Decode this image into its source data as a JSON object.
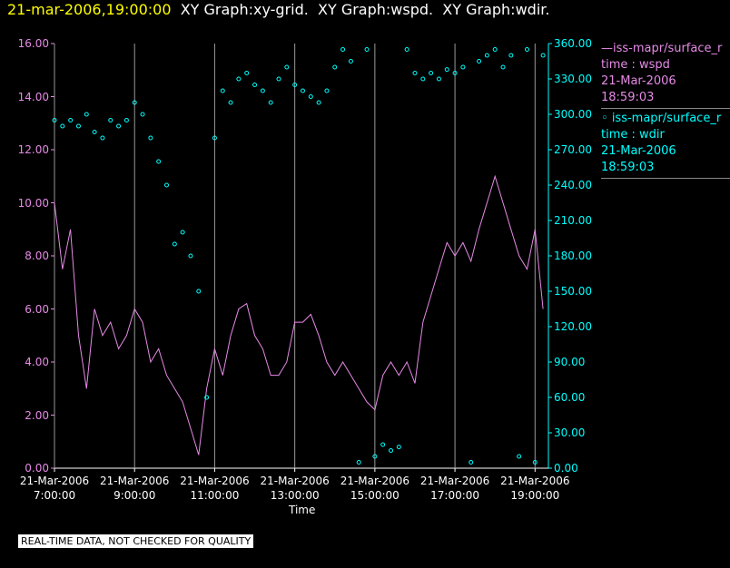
{
  "chart_data": {
    "type": "line",
    "timestamp": "21-mar-2006,19:00:00",
    "title": "XY Graph:xy-grid.  XY Graph:wspd.  XY Graph:wdir.",
    "xlabel": "Time",
    "footnote": "REAL-TIME DATA, NOT CHECKED FOR QUALITY",
    "grid": "x",
    "x": [
      "2006-03-21T07:00",
      "2006-03-21T07:12",
      "2006-03-21T07:24",
      "2006-03-21T07:36",
      "2006-03-21T07:48",
      "2006-03-21T08:00",
      "2006-03-21T08:12",
      "2006-03-21T08:24",
      "2006-03-21T08:36",
      "2006-03-21T08:48",
      "2006-03-21T09:00",
      "2006-03-21T09:12",
      "2006-03-21T09:24",
      "2006-03-21T09:36",
      "2006-03-21T09:48",
      "2006-03-21T10:00",
      "2006-03-21T10:12",
      "2006-03-21T10:24",
      "2006-03-21T10:36",
      "2006-03-21T10:48",
      "2006-03-21T11:00",
      "2006-03-21T11:12",
      "2006-03-21T11:24",
      "2006-03-21T11:36",
      "2006-03-21T11:48",
      "2006-03-21T12:00",
      "2006-03-21T12:12",
      "2006-03-21T12:24",
      "2006-03-21T12:36",
      "2006-03-21T12:48",
      "2006-03-21T13:00",
      "2006-03-21T13:12",
      "2006-03-21T13:24",
      "2006-03-21T13:36",
      "2006-03-21T13:48",
      "2006-03-21T14:00",
      "2006-03-21T14:12",
      "2006-03-21T14:24",
      "2006-03-21T14:36",
      "2006-03-21T14:48",
      "2006-03-21T15:00",
      "2006-03-21T15:12",
      "2006-03-21T15:24",
      "2006-03-21T15:36",
      "2006-03-21T15:48",
      "2006-03-21T16:00",
      "2006-03-21T16:12",
      "2006-03-21T16:24",
      "2006-03-21T16:36",
      "2006-03-21T16:48",
      "2006-03-21T17:00",
      "2006-03-21T17:12",
      "2006-03-21T17:24",
      "2006-03-21T17:36",
      "2006-03-21T17:48",
      "2006-03-21T18:00",
      "2006-03-21T18:12",
      "2006-03-21T18:24",
      "2006-03-21T18:36",
      "2006-03-21T18:48",
      "2006-03-21T19:00",
      "2006-03-21T19:12"
    ],
    "xlim": [
      "2006-03-21T07:00",
      "2006-03-21T19:20"
    ],
    "xticks": [
      {
        "value": "2006-03-21T07:00",
        "label": "21-Mar-2006\n7:00:00"
      },
      {
        "value": "2006-03-21T09:00",
        "label": "21-Mar-2006\n9:00:00"
      },
      {
        "value": "2006-03-21T11:00",
        "label": "21-Mar-2006\n11:00:00"
      },
      {
        "value": "2006-03-21T13:00",
        "label": "21-Mar-2006\n13:00:00"
      },
      {
        "value": "2006-03-21T15:00",
        "label": "21-Mar-2006\n15:00:00"
      },
      {
        "value": "2006-03-21T17:00",
        "label": "21-Mar-2006\n17:00:00"
      },
      {
        "value": "2006-03-21T19:00",
        "label": "21-Mar-2006\n19:00:00"
      }
    ],
    "ylim": [
      0,
      16
    ],
    "yticks": [
      {
        "value": 0,
        "label": "0.00"
      },
      {
        "value": 2,
        "label": "2.00"
      },
      {
        "value": 4,
        "label": "4.00"
      },
      {
        "value": 6,
        "label": "6.00"
      },
      {
        "value": 8,
        "label": "8.00"
      },
      {
        "value": 10,
        "label": "10.00"
      },
      {
        "value": 12,
        "label": "12.00"
      },
      {
        "value": 14,
        "label": "14.00"
      },
      {
        "value": 16,
        "label": "16.00"
      }
    ],
    "y2lim": [
      0,
      360
    ],
    "y2ticks": [
      {
        "value": 0,
        "label": "0.00"
      },
      {
        "value": 30,
        "label": "30.00"
      },
      {
        "value": 60,
        "label": "60.00"
      },
      {
        "value": 90,
        "label": "90.00"
      },
      {
        "value": 120,
        "label": "120.00"
      },
      {
        "value": 150,
        "label": "150.00"
      },
      {
        "value": 180,
        "label": "180.00"
      },
      {
        "value": 210,
        "label": "210.00"
      },
      {
        "value": 240,
        "label": "240.00"
      },
      {
        "value": 270,
        "label": "270.00"
      },
      {
        "value": 300,
        "label": "300.00"
      },
      {
        "value": 330,
        "label": "330.00"
      },
      {
        "value": 360,
        "label": "360.00"
      }
    ],
    "series": [
      {
        "name": "iss-mapr/surface_r",
        "legend_lines": [
          "time : wspd",
          "21-Mar-2006",
          "18:59:03"
        ],
        "color": "#e68ae6",
        "style": "line",
        "values": [
          10,
          7.5,
          9,
          5,
          3,
          6,
          5,
          5.5,
          4.5,
          5,
          6,
          5.5,
          4,
          4.5,
          3.5,
          3,
          2.5,
          1.5,
          0.5,
          3,
          4.5,
          3.5,
          5,
          6,
          6.2,
          5,
          4.5,
          3.5,
          3.5,
          4,
          5.5,
          5.5,
          5.8,
          5,
          4,
          3.5,
          4,
          3.5,
          3,
          2.5,
          2.2,
          3.5,
          4,
          3.5,
          4,
          3.2,
          5.5,
          6.5,
          7.5,
          8.5,
          8,
          8.5,
          7.8,
          9,
          10,
          11,
          10,
          9,
          8,
          7.5,
          9,
          6
        ]
      },
      {
        "name": "iss-mapr/surface_r",
        "legend_lines": [
          "time : wdir",
          "21-Mar-2006",
          "18:59:03"
        ],
        "color": "#00ffff",
        "style": "markers",
        "axis": "y2",
        "values": [
          295,
          290,
          295,
          290,
          300,
          285,
          280,
          295,
          290,
          295,
          310,
          300,
          280,
          260,
          240,
          190,
          200,
          180,
          150,
          60,
          280,
          320,
          310,
          330,
          335,
          325,
          320,
          310,
          330,
          340,
          325,
          320,
          315,
          310,
          320,
          340,
          355,
          345,
          5,
          355,
          10,
          20,
          15,
          18,
          355,
          335,
          330,
          335,
          330,
          338,
          335,
          340,
          5,
          345,
          350,
          355,
          340,
          350,
          10,
          355,
          5,
          350
        ]
      }
    ]
  }
}
